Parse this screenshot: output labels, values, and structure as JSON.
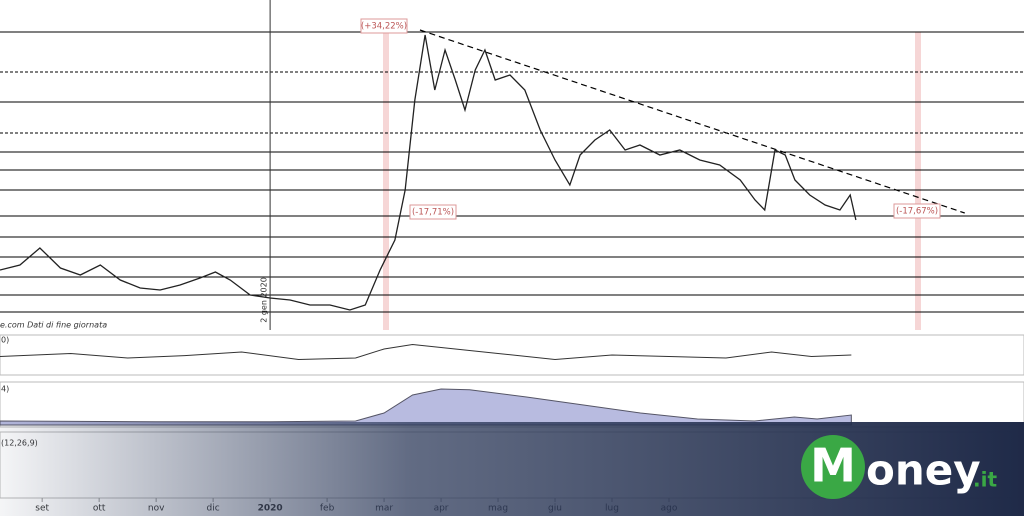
{
  "chart_data": {
    "type": "line",
    "source": "e.com Dati di fine giornata",
    "cursor_label": "2 gen 2020",
    "annotations": [
      "(+34,22%)",
      "(-17,71%)",
      "(-17,67%)"
    ],
    "panel_labels": [
      "0)",
      "4)",
      "(12,26,9)"
    ],
    "brand": {
      "initial": "M",
      "rest": "oney",
      "suffix": ".it"
    },
    "xlim": [
      -0.74,
      17.23
    ],
    "xticks": [
      {
        "value": 0,
        "label": "set"
      },
      {
        "value": 1,
        "label": "ott"
      },
      {
        "value": 2,
        "label": "nov"
      },
      {
        "value": 3,
        "label": "dic"
      },
      {
        "value": 4,
        "label": "2020"
      },
      {
        "value": 5,
        "label": "feb"
      },
      {
        "value": 6,
        "label": "mar"
      },
      {
        "value": 7,
        "label": "apr"
      },
      {
        "value": 8,
        "label": "mag"
      },
      {
        "value": 9,
        "label": "giu"
      },
      {
        "value": 10,
        "label": "lug"
      },
      {
        "value": 11,
        "label": "ago"
      }
    ],
    "ylim": [
      0,
      330
    ],
    "levels": [
      298,
      258,
      228,
      197,
      178,
      160,
      140,
      114,
      93,
      73,
      53,
      35,
      18
    ],
    "x": [
      -0.74,
      -0.39,
      -0.04,
      0.32,
      0.67,
      1.02,
      1.37,
      1.72,
      2.07,
      2.42,
      2.77,
      3.04,
      3.3,
      3.65,
      4.0,
      4.35,
      4.7,
      5.05,
      5.4,
      5.67,
      5.93,
      6.19,
      6.37,
      6.54,
      6.72,
      6.89,
      7.07,
      7.25,
      7.42,
      7.6,
      7.77,
      7.95,
      8.21,
      8.47,
      8.74,
      9.0,
      9.26,
      9.44,
      9.7,
      9.96,
      10.23,
      10.49,
      10.84,
      11.19,
      11.54,
      11.89,
      12.25,
      12.51,
      12.68,
      12.86,
      13.04,
      13.21,
      13.47,
      13.74,
      14.0,
      14.18,
      14.28
    ],
    "series": [
      {
        "name": "Prezzo",
        "color": "#222222",
        "values": [
          60,
          65,
          82,
          62,
          55,
          65,
          50,
          42,
          40,
          45,
          52,
          58,
          50,
          35,
          32,
          30,
          25,
          25,
          20,
          25,
          60,
          90,
          140,
          230,
          295,
          240,
          280,
          250,
          220,
          260,
          280,
          250,
          255,
          240,
          200,
          170,
          145,
          175,
          190,
          200,
          180,
          185,
          175,
          180,
          170,
          165,
          150,
          130,
          120,
          180,
          175,
          150,
          135,
          125,
          120,
          135,
          110
        ]
      }
    ],
    "trend": {
      "x": [
        6.63,
        16.19
      ],
      "values": [
        300,
        117
      ],
      "color": "#000000"
    },
    "rsi": {
      "x": [
        -0.74,
        0.5,
        1.5,
        2.5,
        3.5,
        4.5,
        5.5,
        6.0,
        6.5,
        7.0,
        8.0,
        9.0,
        10.0,
        11.0,
        12.0,
        12.8,
        13.5,
        14.2
      ],
      "values": [
        45,
        55,
        40,
        48,
        60,
        35,
        40,
        70,
        85,
        75,
        55,
        35,
        50,
        45,
        40,
        60,
        45,
        50
      ],
      "ylim": [
        0,
        100
      ]
    },
    "volume": {
      "x": [
        -0.74,
        2,
        4,
        5.5,
        6.0,
        6.5,
        7.0,
        7.5,
        8.5,
        9.5,
        10.5,
        11.5,
        12.5,
        13.2,
        13.6,
        14.2
      ],
      "values": [
        10,
        8,
        8,
        10,
        30,
        75,
        90,
        88,
        70,
        50,
        30,
        15,
        10,
        20,
        15,
        25
      ],
      "ylim": [
        0,
        100
      ]
    }
  }
}
